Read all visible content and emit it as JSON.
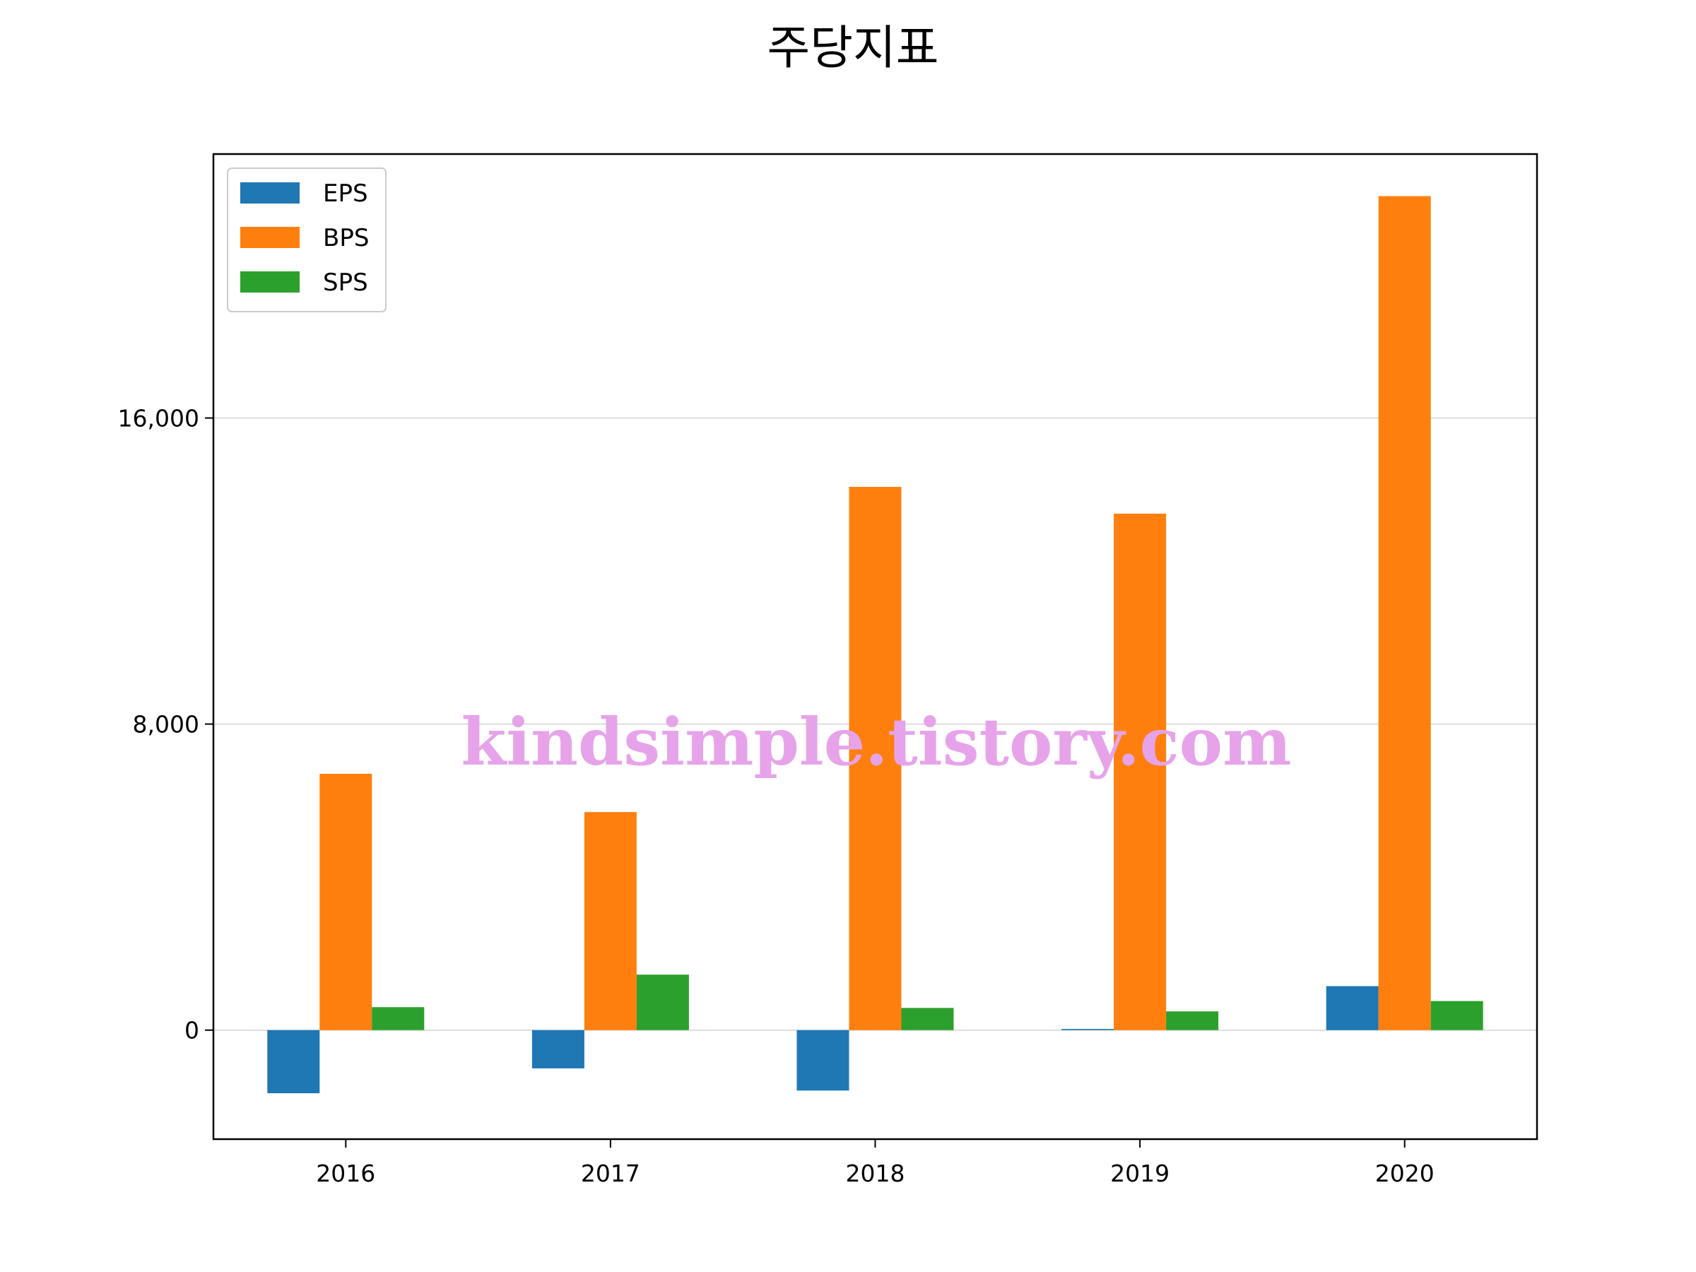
{
  "chart_data": {
    "type": "bar",
    "title": "주당지표",
    "xlabel": "",
    "ylabel": "",
    "categories": [
      "2016",
      "2017",
      "2018",
      "2019",
      "2020"
    ],
    "series": [
      {
        "name": "EPS",
        "color": "#1f77b4",
        "values": [
          -1650,
          -1000,
          -1580,
          30,
          1150
        ]
      },
      {
        "name": "BPS",
        "color": "#ff7f0e",
        "values": [
          6700,
          5700,
          14200,
          13500,
          21800
        ]
      },
      {
        "name": "SPS",
        "color": "#2ca02c",
        "values": [
          600,
          1450,
          580,
          490,
          760
        ]
      }
    ],
    "ylim": [
      -2850,
      22900
    ],
    "yticks": [
      0,
      8000,
      16000
    ],
    "ytick_labels": [
      "0",
      "8,000",
      "16,000"
    ],
    "grid": {
      "y": true,
      "x": false
    },
    "legend_position": "top-left",
    "watermark": "kindsimple.tistory.com"
  }
}
